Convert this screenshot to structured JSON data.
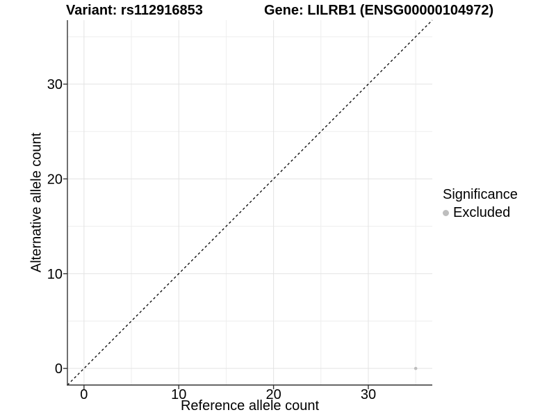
{
  "chart_data": {
    "type": "scatter",
    "titles": {
      "left": "Variant: rs112916853",
      "right": "Gene: LILRB1 (ENSG00000104972)"
    },
    "xlabel": "Reference allele count",
    "ylabel": "Alternative allele count",
    "xlim": [
      -1.75,
      36.75
    ],
    "ylim": [
      -1.75,
      36.75
    ],
    "x_ticks": [
      0,
      10,
      20,
      30
    ],
    "y_ticks": [
      0,
      10,
      20,
      30
    ],
    "x_minor_ticks": [
      5,
      15,
      25,
      35
    ],
    "y_minor_ticks": [
      5,
      15,
      25,
      35
    ],
    "grid": "major+minor",
    "series": [
      {
        "name": "Excluded",
        "color": "#bebebe",
        "points": [
          {
            "x": 35,
            "y": 0
          }
        ]
      }
    ],
    "reference_line": {
      "kind": "identity",
      "slope": 1,
      "intercept": 0,
      "style": "dashed",
      "color": "#000000"
    },
    "legend": {
      "title": "Significance",
      "position": "right",
      "entries": [
        {
          "label": "Excluded",
          "color": "#bebebe",
          "marker": "circle"
        }
      ]
    }
  },
  "style": {
    "background": "#ffffff",
    "text_color": "#000000",
    "axis_line": "#333333",
    "grid_major": "#e3e3e3",
    "grid_minor": "#eeeeee",
    "point_color": "#bebebe"
  }
}
